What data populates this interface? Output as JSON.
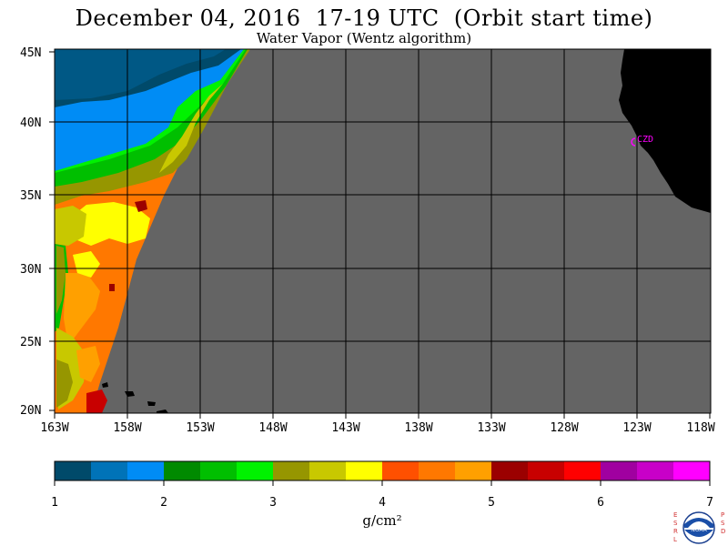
{
  "title": "December 04, 2016  17-19 UTC  (Orbit start time)",
  "subtitle": "Water Vapor (Wentz algorithm)",
  "lat_labels": [
    "45N",
    "40N",
    "35N",
    "30N",
    "25N",
    "20N"
  ],
  "lon_labels": [
    "163W",
    "158W",
    "153W",
    "148W",
    "143W",
    "138W",
    "133W",
    "128W",
    "123W",
    "118W"
  ],
  "station_label": "CZD",
  "colorbar": {
    "colors": [
      "#004a6a",
      "#0073b8",
      "#008cf5",
      "#008a00",
      "#00bf00",
      "#00f200",
      "#969600",
      "#c8c800",
      "#ffff00",
      "#ff5000",
      "#ff7800",
      "#ffa000",
      "#9b0000",
      "#c80000",
      "#ff0000",
      "#a000a0",
      "#c800c8",
      "#ff00ff"
    ],
    "tick_labels": [
      "1",
      "2",
      "3",
      "4",
      "5",
      "6",
      "7"
    ],
    "units": "g/cm²"
  },
  "colors": {
    "no_data": "#646464",
    "land": "#000000",
    "station": "#ff00ff",
    "grid": "#000000"
  },
  "logo": {
    "left_letters": "ESRL",
    "right_letters": "PSD",
    "emblem_text": "NOAA"
  }
}
